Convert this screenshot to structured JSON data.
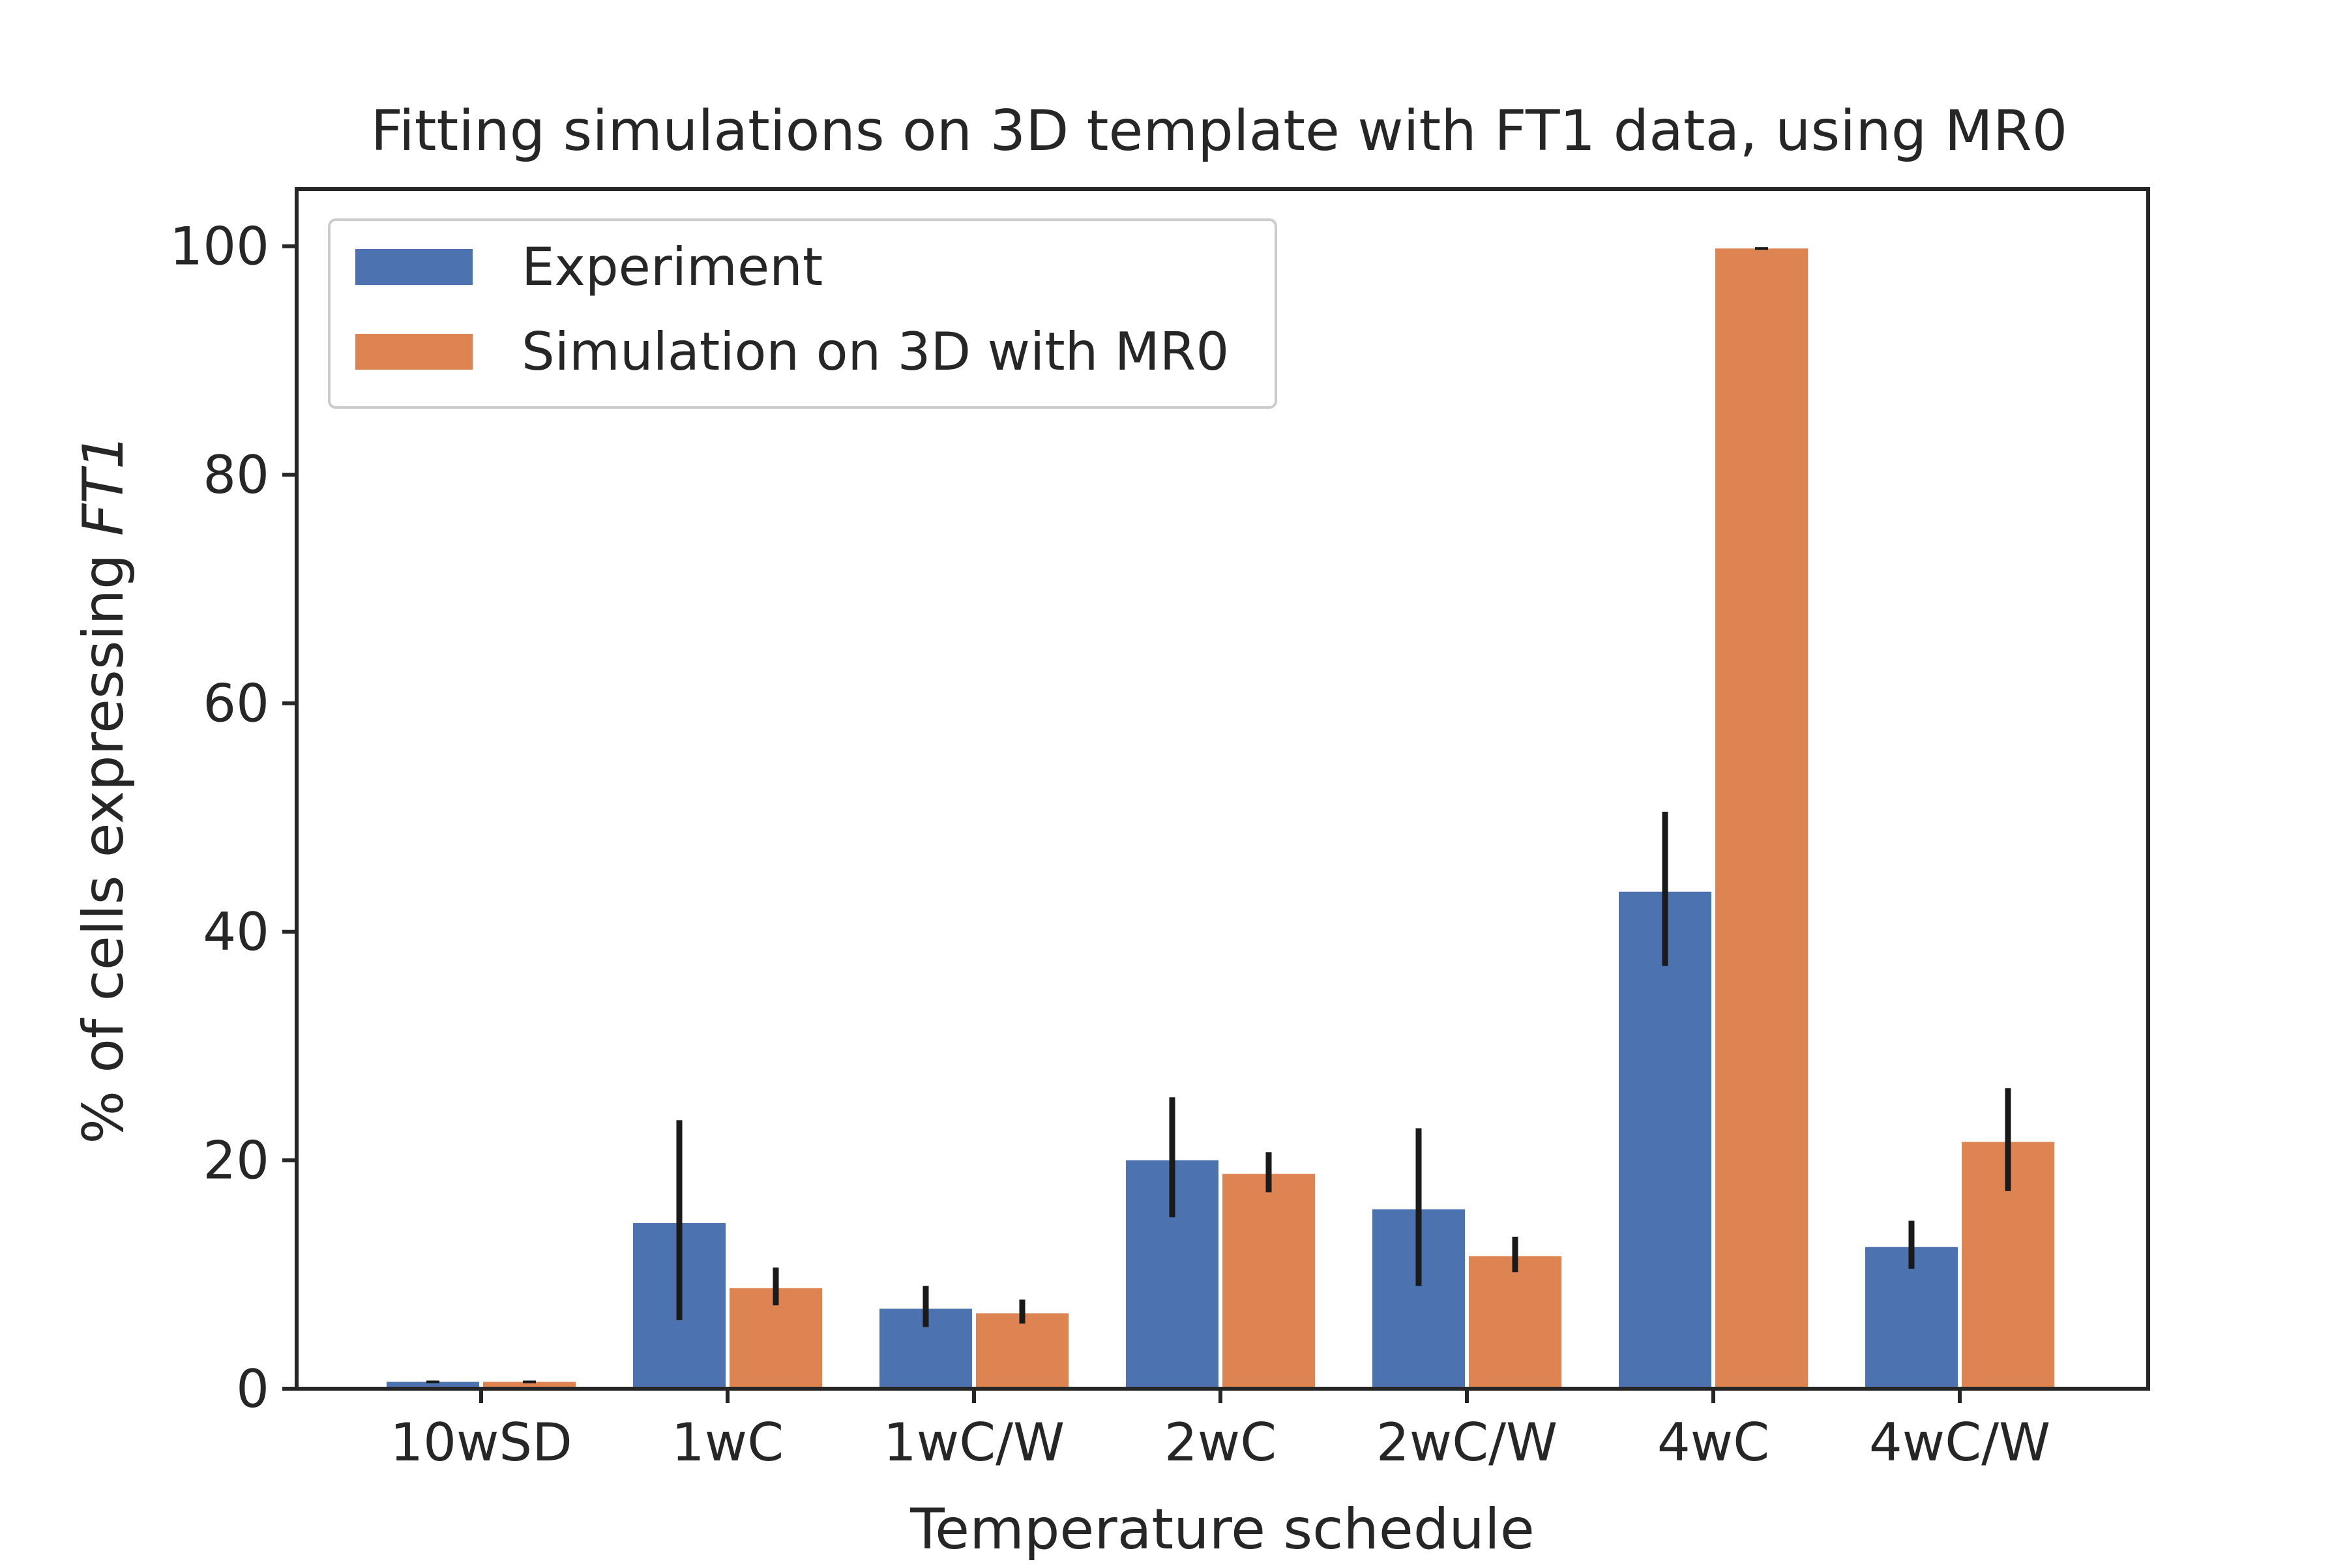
{
  "chart_data": {
    "type": "bar",
    "title": "Fitting simulations on 3D template with FT1 data, using MR0",
    "xlabel": "Temperature schedule",
    "ylabel_prefix": "% of cells expressing ",
    "ylabel_italic": "FT1",
    "categories": [
      "10wSD",
      "1wC",
      "1wC/W",
      "2wC",
      "2wC/W",
      "4wC",
      "4wC/W"
    ],
    "ylim": [
      0,
      105
    ],
    "yticks": [
      0,
      20,
      40,
      60,
      80,
      100
    ],
    "grid": false,
    "legend_position": "top-left",
    "series": [
      {
        "name": "Experiment",
        "color": "#4c72b0",
        "values": [
          0.6,
          14.5,
          7.0,
          20.0,
          15.7,
          43.5,
          12.4
        ],
        "error_low": [
          0.6,
          6.0,
          5.4,
          15.0,
          9.0,
          37.0,
          10.5
        ],
        "error_high": [
          0.6,
          23.5,
          9.0,
          25.5,
          22.8,
          50.5,
          14.7
        ]
      },
      {
        "name": "Simulation on 3D with MR0",
        "color": "#dd8452",
        "values": [
          0.6,
          8.8,
          6.6,
          18.8,
          11.6,
          99.8,
          21.6
        ],
        "error_low": [
          0.6,
          7.3,
          5.7,
          17.2,
          10.2,
          99.8,
          17.3
        ],
        "error_high": [
          0.6,
          10.6,
          7.8,
          20.7,
          13.3,
          99.8,
          26.3
        ]
      }
    ],
    "error_color": "#1a1a1a"
  }
}
